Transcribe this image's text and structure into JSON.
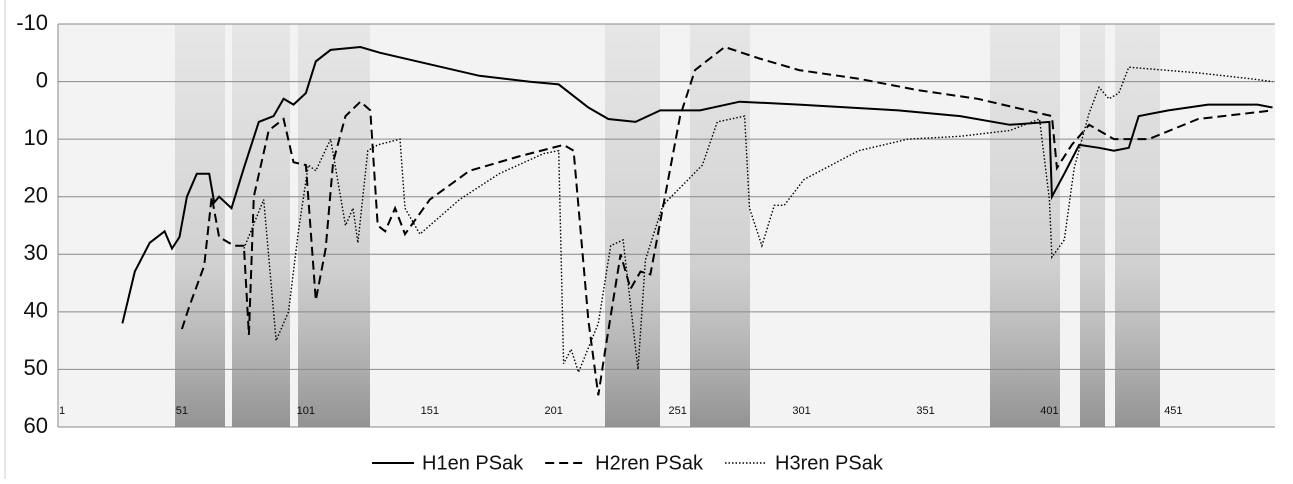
{
  "chart_data": {
    "type": "line",
    "xlim": [
      1,
      492
    ],
    "xticks": [
      1,
      51,
      101,
      151,
      201,
      251,
      301,
      351,
      401,
      451
    ],
    "ylim": [
      60,
      -10
    ],
    "yticks": [
      -10,
      0,
      10,
      20,
      30,
      40,
      50,
      60
    ],
    "grid": true,
    "legend": "bottom",
    "series": [
      {
        "name": "H1en PSak",
        "color": "#000000",
        "style": "solid",
        "x": [
          27,
          32,
          38,
          44,
          47,
          50,
          53,
          57,
          62,
          64,
          66,
          71,
          76,
          82,
          88,
          92,
          96,
          101,
          105,
          111,
          123,
          131,
          151,
          171,
          191,
          203,
          215,
          223,
          234,
          244,
          260,
          276,
          300,
          320,
          340,
          365,
          385,
          401,
          402,
          407,
          413,
          421,
          427,
          433,
          437,
          449,
          465,
          485,
          491
        ],
        "values": [
          42,
          33,
          28,
          26,
          29,
          27,
          20,
          16,
          16,
          21,
          20,
          22,
          15,
          7,
          6,
          3,
          4,
          2,
          -3.5,
          -5.5,
          -6,
          -5,
          -3,
          -1,
          0,
          0.5,
          4.5,
          6.5,
          7,
          5,
          5,
          3.5,
          4,
          4.5,
          5,
          6,
          7.5,
          7,
          20,
          16,
          11,
          11.5,
          12,
          11.5,
          6,
          5,
          4,
          4,
          4.5
        ]
      },
      {
        "name": "H2ren PSak",
        "color": "#000000",
        "style": "dashed",
        "x": [
          51,
          54,
          60,
          63,
          66,
          72,
          76,
          78,
          80,
          86,
          92,
          96,
          101,
          105,
          109,
          112,
          117,
          123,
          127,
          130,
          133,
          137,
          141,
          151,
          167,
          187,
          205,
          209,
          215,
          219,
          222,
          228,
          232,
          236,
          240,
          245,
          252,
          258,
          264,
          270,
          284,
          300,
          324,
          348,
          372,
          402,
          404,
          410,
          417,
          427,
          441,
          461,
          491
        ],
        "values": [
          43,
          39,
          32,
          20,
          27,
          28.5,
          28.5,
          44,
          20,
          8.5,
          6.5,
          14,
          14.5,
          38,
          29,
          14,
          6,
          3.5,
          5,
          25,
          26,
          22,
          26.5,
          20.5,
          15.5,
          13,
          11,
          12,
          41.5,
          54.5,
          46,
          30,
          36,
          33,
          33.5,
          22,
          6,
          -2,
          -4,
          -6,
          -4,
          -2,
          -0.5,
          1.5,
          3,
          6,
          15,
          11,
          7.5,
          10,
          10,
          6.5,
          5
        ]
      },
      {
        "name": "H3ren PSak",
        "color": "#000000",
        "style": "dotted",
        "x": [
          76,
          84,
          89,
          94,
          98,
          102,
          105,
          111,
          117,
          120,
          122,
          126,
          130,
          139,
          141,
          147,
          163,
          179,
          197,
          203,
          205,
          208,
          211,
          219,
          224,
          229,
          235,
          238,
          245,
          253,
          261,
          267,
          278,
          280,
          285,
          290,
          294,
          302,
          324,
          344,
          365,
          385,
          397,
          401,
          402,
          407,
          411,
          417,
          421,
          425,
          429,
          433,
          461,
          482,
          491
        ],
        "values": [
          29,
          20.5,
          45,
          40,
          26,
          14.5,
          15.5,
          10,
          25,
          22,
          28,
          12,
          11,
          10,
          22,
          26.5,
          20.5,
          16,
          12.5,
          12,
          49,
          46.5,
          50.5,
          42,
          28.5,
          27.5,
          50,
          31,
          21.5,
          18,
          14.5,
          7,
          6,
          22,
          28.5,
          21.5,
          21.5,
          17,
          12,
          10,
          9.5,
          8.5,
          6.5,
          20.5,
          30.5,
          27.5,
          15,
          5.5,
          1,
          3,
          2,
          -2.5,
          -1.5,
          -0.5,
          0
        ]
      }
    ]
  }
}
